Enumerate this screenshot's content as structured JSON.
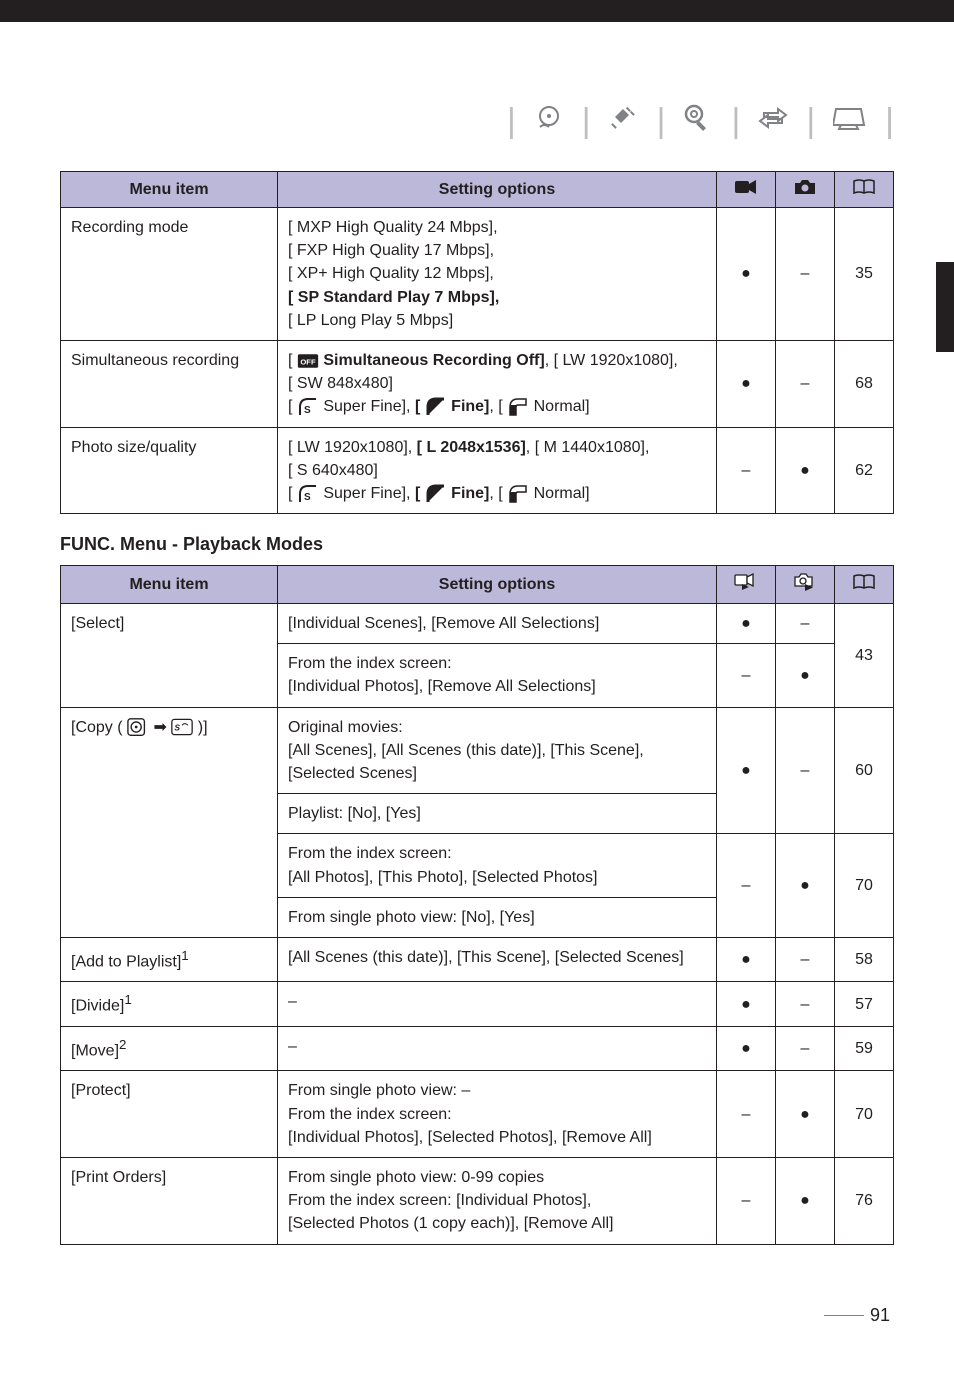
{
  "header_icons": {
    "disc_icon": "disc-hand-icon",
    "plug_icon": "plug-icon",
    "settings_icon": "settings-icon",
    "transfer_icon": "transfer-icon",
    "screen_icon": "screen-icon"
  },
  "table1": {
    "headers": {
      "menu": "Menu item",
      "settings": "Setting options",
      "movie_icon": "movie-camera-icon",
      "photo_icon": "camera-icon",
      "page_icon": "book-icon"
    },
    "rows": [
      {
        "menu": "Recording mode",
        "settings_lines": [
          "[ MXP High Quality 24 Mbps],",
          "[ FXP High Quality 17 Mbps],",
          "[ XP+ High Quality 12 Mbps],",
          "[ SP  Standard Play 7 Mbps],",
          "[ LP Long Play 5 Mbps]"
        ],
        "bold_idx": 3,
        "movie": "●",
        "photo": "–",
        "page": "35"
      },
      {
        "menu": "Simultaneous recording",
        "settings_lines": [
          {
            "segments": [
              {
                "text": "[ ",
                "bold": false
              },
              {
                "icon": "off-card",
                "bold": false
              },
              {
                "text": " ",
                "bold": false
              },
              {
                "text": "Simultaneous Recording Off]",
                "bold": true
              },
              {
                "text": ", [ LW 1920x1080],",
                "bold": false
              }
            ]
          },
          "[ SW 848x480]",
          {
            "segments": [
              {
                "text": "[ ",
                "bold": false
              },
              {
                "icon": "superfine"
              },
              {
                "text": " Super Fine], ",
                "bold": false
              },
              {
                "text": "[ ",
                "bold": true
              },
              {
                "icon": "fine",
                "bold": true
              },
              {
                "text": " Fine]",
                "bold": true
              },
              {
                "text": ", [ ",
                "bold": false
              },
              {
                "icon": "normal"
              },
              {
                "text": " Normal]",
                "bold": false
              }
            ]
          }
        ],
        "movie": "●",
        "photo": "–",
        "page": "68"
      },
      {
        "menu": "Photo size/quality",
        "settings_lines": [
          {
            "segments": [
              {
                "text": "[ LW 1920x1080], ",
                "bold": false
              },
              {
                "text": "[ L  2048x1536]",
                "bold": true
              },
              {
                "text": ", [ M 1440x1080],",
                "bold": false
              }
            ]
          },
          "[ S  640x480]",
          {
            "segments": [
              {
                "text": "[ ",
                "bold": false
              },
              {
                "icon": "superfine"
              },
              {
                "text": " Super Fine], ",
                "bold": false
              },
              {
                "text": "[ ",
                "bold": true
              },
              {
                "icon": "fine",
                "bold": true
              },
              {
                "text": " Fine]",
                "bold": true
              },
              {
                "text": ", [ ",
                "bold": false
              },
              {
                "icon": "normal"
              },
              {
                "text": " Normal]",
                "bold": false
              }
            ]
          }
        ],
        "movie": "–",
        "photo": "●",
        "page": "62"
      }
    ]
  },
  "section_title": "FUNC. Menu - Playback Modes",
  "table2": {
    "headers": {
      "menu": "Menu item",
      "settings": "Setting options",
      "play_movie_icon": "play-movie-icon",
      "play_photo_icon": "play-photo-icon",
      "page_icon": "book-icon"
    },
    "rows": [
      {
        "menu": "[Select]",
        "rowspan": 2,
        "sub": [
          {
            "settings": "[Individual Scenes], [Remove All Selections]",
            "movie": "●",
            "photo": "–",
            "page": "43",
            "page_rowspan": 2
          },
          {
            "settings_lines": [
              "From the index screen:",
              "[Individual Photos], [Remove All Selections]"
            ],
            "movie": "–",
            "photo": "●"
          }
        ]
      },
      {
        "menu_html": "[Copy ( <svg class='ico' viewBox='0 0 24 20'><rect x='1' y='1' width='18' height='18' rx='3' fill='none' stroke='#231f20' stroke-width='1.5'/><circle cx='10' cy='10' r='5.5' fill='none' stroke='#231f20' stroke-width='1.5'/><circle cx='10' cy='10' r='1.5' fill='#231f20'/></svg> ➡ <svg class='ico' viewBox='0 0 26 20'><rect x='1' y='1' width='24' height='18' rx='3' fill='none' stroke='#231f20' stroke-width='1.5'/><text x='4' y='14' font-size='10' font-style='italic' font-weight='bold' fill='#231f20'>S</text><path d='M13 8 Q16 4 20 8' fill='none' stroke='#231f20' stroke-width='1.2'/></svg> )]",
        "rowspan": 4,
        "sub": [
          {
            "settings_lines": [
              "Original movies:",
              "[All Scenes], [All Scenes (this date)], [This Scene],",
              "[Selected Scenes]"
            ],
            "movie": "●",
            "photo": "–",
            "page": "60",
            "movie_rowspan": 2,
            "photo_rowspan": 2,
            "page_rowspan": 2
          },
          {
            "settings": "Playlist: [No], [Yes]"
          },
          {
            "settings_lines": [
              "From the index screen:",
              "[All Photos], [This Photo], [Selected Photos]"
            ],
            "movie": "–",
            "photo": "●",
            "page": "70",
            "movie_rowspan": 2,
            "photo_rowspan": 2,
            "page_rowspan": 2
          },
          {
            "settings": "From single photo view: [No], [Yes]"
          }
        ]
      },
      {
        "menu_sup": "[Add to Playlist]",
        "sup": "1",
        "settings": "[All Scenes (this date)], [This Scene], [Selected Scenes]",
        "movie": "●",
        "photo": "–",
        "page": "58"
      },
      {
        "menu_sup": "[Divide]",
        "sup": "1",
        "settings": "–",
        "movie": "●",
        "photo": "–",
        "page": "57"
      },
      {
        "menu_sup": "[Move]",
        "sup": "2",
        "settings": "–",
        "movie": "●",
        "photo": "–",
        "page": "59"
      },
      {
        "menu": "[Protect]",
        "settings_lines": [
          "From single photo view: –",
          "From the index screen:",
          "[Individual Photos], [Selected Photos], [Remove All]"
        ],
        "movie": "–",
        "photo": "●",
        "page": "70"
      },
      {
        "menu": "[Print Orders]",
        "settings_lines": [
          "From single photo view: 0-99 copies",
          "From the index screen: [Individual Photos],",
          "[Selected Photos (1 copy each)], [Remove All]"
        ],
        "movie": "–",
        "photo": "●",
        "page": "76"
      }
    ]
  },
  "page_number": "91"
}
